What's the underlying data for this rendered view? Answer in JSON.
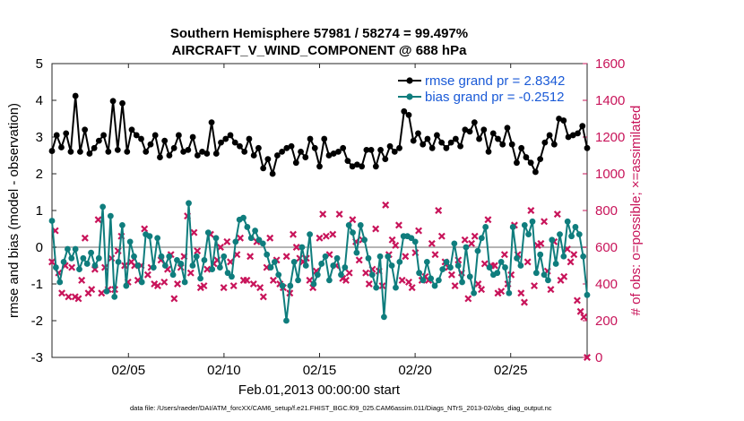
{
  "colors": {
    "rmse": "#000000",
    "bias": "#0f7d7d",
    "obs": "#c8145a",
    "legend_text": "#1a5ad7",
    "zero_line": "#b4b4b4"
  },
  "chart_data": {
    "type": "line",
    "title": "Southern Hemisphere 57981 / 58274 = 99.497%",
    "subtitle": "AIRCRAFT_V_WIND_COMPONENT @ 688 hPa",
    "xlabel": "Feb.01,2013 00:00:00 start",
    "ylabel_left": "rmse and bias (model - observation)",
    "ylabel_right": "# of obs: o=possible; ×=assimilated",
    "footnote": "data file: /Users/raeder/DAI/ATM_forcXX/CAM6_setup/f.e21.FHIST_BGC.f09_025.CAM6assim.011/Diags_NTrS_2013-02/obs_diag_output.nc",
    "xlim": [
      1,
      29
    ],
    "ylim_left": [
      -3,
      5
    ],
    "ylim_right": [
      0,
      1600
    ],
    "x_ticks": [
      5,
      10,
      15,
      20,
      25
    ],
    "x_tick_labels": [
      "02/05",
      "02/10",
      "02/15",
      "02/20",
      "02/25"
    ],
    "y_ticks_left": [
      "-3",
      "-2",
      "-1",
      "0",
      "1",
      "2",
      "3",
      "4",
      "5"
    ],
    "y_ticks_right": [
      "0",
      "200",
      "400",
      "600",
      "800",
      "1000",
      "1200",
      "1400",
      "1600"
    ],
    "legend": [
      "rmse grand pr = 2.8342",
      "bias grand pr = -0.2512"
    ],
    "legend_position": "top-right",
    "series": [
      {
        "name": "rmse",
        "axis": "left",
        "values": [
          2.62,
          3.05,
          2.72,
          3.1,
          2.6,
          4.12,
          2.6,
          3.2,
          2.55,
          2.7,
          2.9,
          3.05,
          2.6,
          3.98,
          2.65,
          3.92,
          2.6,
          3.2,
          3.05,
          2.95,
          2.6,
          2.8,
          3.05,
          2.45,
          2.9,
          2.5,
          2.7,
          3.05,
          2.6,
          2.65,
          3.0,
          2.5,
          2.6,
          2.55,
          3.4,
          2.55,
          2.85,
          2.95,
          3.05,
          2.85,
          2.75,
          2.6,
          2.95,
          2.5,
          2.7,
          2.15,
          2.4,
          2.0,
          2.5,
          2.6,
          2.7,
          2.75,
          2.3,
          2.6,
          2.45,
          2.95,
          2.7,
          2.2,
          2.95,
          2.5,
          2.55,
          2.6,
          2.7,
          2.35,
          2.2,
          2.25,
          2.2,
          2.65,
          2.65,
          2.2,
          2.65,
          2.4,
          2.75,
          2.6,
          2.7,
          3.7,
          3.6,
          2.9,
          3.1,
          2.8,
          2.95,
          2.7,
          3.05,
          2.85,
          2.7,
          2.85,
          2.95,
          2.75,
          3.2,
          3.15,
          3.4,
          2.95,
          3.2,
          2.6,
          3.1,
          2.95,
          2.8,
          3.25,
          2.8,
          2.3,
          2.7,
          2.45,
          2.3,
          2.05,
          2.4,
          2.85,
          3.05,
          2.8,
          3.5,
          3.45,
          3.0,
          3.05,
          3.1,
          3.3,
          2.7
        ]
      },
      {
        "name": "bias",
        "axis": "left",
        "values": [
          0.72,
          -0.55,
          -0.95,
          -0.4,
          -0.05,
          -0.3,
          -0.05,
          -0.6,
          -0.3,
          -0.45,
          -0.15,
          -0.5,
          -0.3,
          1.1,
          -1.2,
          0.85,
          -1.35,
          -0.4,
          0.6,
          -1.05,
          0.15,
          -0.25,
          -0.5,
          -0.95,
          0.35,
          0.3,
          -0.55,
          0.25,
          -0.25,
          -0.5,
          -0.25,
          -0.75,
          -0.35,
          -0.45,
          -0.95,
          1.2,
          -0.5,
          -0.25,
          -0.85,
          -0.35,
          0.4,
          -0.6,
          0.25,
          -0.55,
          -0.25,
          -0.7,
          -0.8,
          0.15,
          0.75,
          0.8,
          0.55,
          0.25,
          0.45,
          0.2,
          0.1,
          -0.2,
          -0.55,
          -0.4,
          -0.75,
          -1.05,
          -2.0,
          -1.05,
          -0.4,
          -0.9,
          0.0,
          -0.5,
          0.35,
          -1.0,
          -0.75,
          -0.45,
          -0.25,
          -0.9,
          -0.5,
          -0.3,
          -0.75,
          -0.55,
          0.6,
          0.4,
          -0.15,
          0.6,
          0.2,
          -0.3,
          -0.75,
          -1.1,
          -0.25,
          -1.9,
          -0.25,
          -0.5,
          -1.1,
          -0.4,
          0.3,
          0.3,
          0.25,
          0.15,
          -0.7,
          -0.9,
          -0.4,
          -0.85,
          -1.05,
          -0.9,
          -0.6,
          -0.4,
          -0.55,
          0.1,
          -0.5,
          -0.95,
          0.0,
          -0.8,
          -1.25,
          -0.1,
          0.25,
          0.55,
          -0.55,
          -0.75,
          -0.7,
          -0.4,
          -0.55,
          -1.25,
          0.55,
          -0.3,
          -0.5,
          0.6,
          0.35,
          0.7,
          -0.7,
          -0.2,
          -0.75,
          -0.9,
          0.2,
          -0.45,
          0.35,
          -0.25,
          0.7,
          0.3,
          0.55,
          0.35,
          -0.25,
          -1.3
        ]
      },
      {
        "name": "obs_assimilated",
        "axis": "right",
        "marker": "x",
        "values": [
          520,
          690,
          460,
          350,
          500,
          330,
          490,
          330,
          320,
          420,
          650,
          350,
          370,
          480,
          750,
          350,
          490,
          370,
          540,
          370,
          580,
          660,
          500,
          410,
          520,
          500,
          420,
          500,
          700,
          450,
          490,
          400,
          390,
          530,
          410,
          480,
          560,
          320,
          400,
          490,
          550,
          770,
          460,
          680,
          580,
          380,
          390,
          480,
          670,
          510,
          530,
          600,
          380,
          630,
          520,
          390,
          560,
          650,
          420,
          420,
          550,
          400,
          630,
          380,
          330,
          490,
          650,
          420,
          530,
          400,
          380,
          550,
          350,
          670,
          600,
          540,
          520,
          540,
          420,
          380,
          470,
          650,
          780,
          660,
          560,
          670,
          500,
          780,
          430,
          420,
          460,
          750,
          630,
          530,
          640,
          460,
          400,
          480,
          700,
          470,
          390,
          830,
          560,
          640,
          610,
          720,
          420,
          550,
          410,
          380,
          570,
          690,
          420,
          440,
          420,
          620,
          560,
          800,
          660,
          520,
          490,
          450,
          390,
          530,
          460,
          640,
          320,
          620,
          660,
          400,
          370,
          510,
          750,
          500,
          500,
          350,
          360,
          560,
          400,
          450,
          720,
          560,
          350,
          300,
          520,
          800,
          390,
          610,
          620,
          740,
          470,
          370,
          630,
          780,
          420,
          440,
          590,
          520,
          560,
          310,
          250,
          220,
          0
        ]
      }
    ]
  }
}
